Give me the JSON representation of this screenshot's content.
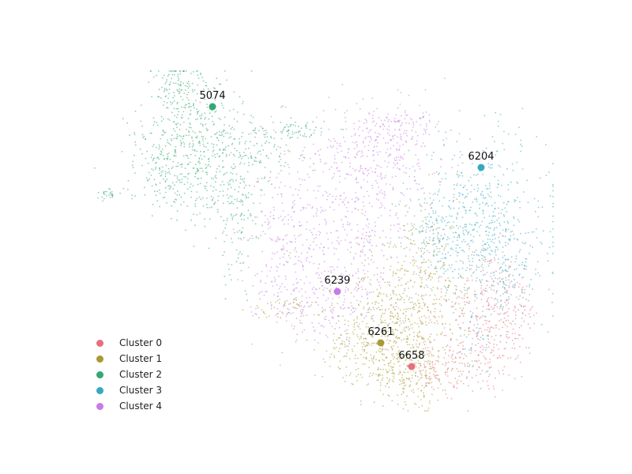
{
  "chart_data": {
    "type": "scatter",
    "title": "",
    "xlabel": "",
    "ylabel": "",
    "axes_visible": false,
    "grid": false,
    "legend_position": "bottom-left",
    "series": [
      {
        "name": "Cluster 0",
        "color": "#e8707d"
      },
      {
        "name": "Cluster 1",
        "color": "#a89a34"
      },
      {
        "name": "Cluster 2",
        "color": "#34a873"
      },
      {
        "name": "Cluster 3",
        "color": "#38a8c0"
      },
      {
        "name": "Cluster 4",
        "color": "#c77ae8"
      }
    ],
    "highlighted_points": [
      {
        "label": "5074",
        "cluster": "Cluster 2",
        "x": 269,
        "y": 135
      },
      {
        "label": "6204",
        "cluster": "Cluster 3",
        "x": 609,
        "y": 212
      },
      {
        "label": "6239",
        "cluster": "Cluster 4",
        "x": 427,
        "y": 369
      },
      {
        "label": "6261",
        "cluster": "Cluster 1",
        "x": 482,
        "y": 434
      },
      {
        "label": "6658",
        "cluster": "Cluster 0",
        "x": 521,
        "y": 464
      }
    ]
  }
}
